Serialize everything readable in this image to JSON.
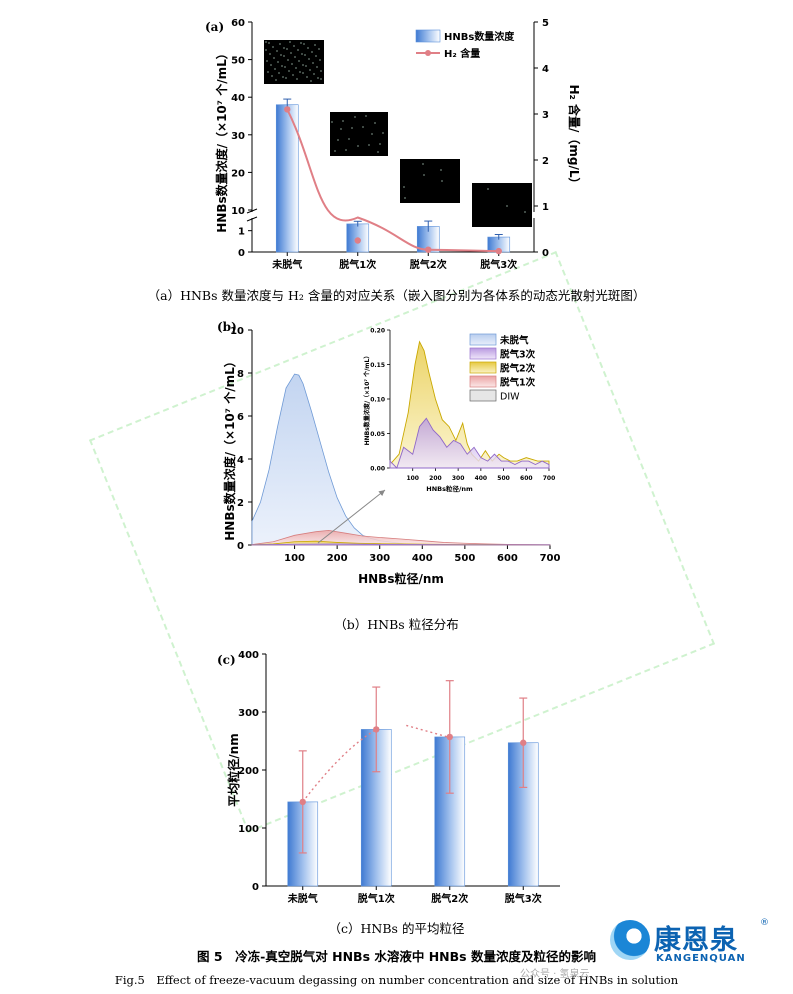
{
  "brand": {
    "name_cn": "康恩泉",
    "name_en": "KANGENQUAN",
    "reg_mark": "®",
    "wechat": "公众号 · 氢泉云"
  },
  "figure": {
    "caption_cn": "图 5　冷冻-真空脱气对 HNBs 水溶液中 HNBs 数量浓度及粒径的影响",
    "caption_en": "Fig.5　Effect of freeze-vacuum degassing on number concentration and size of HNBs in solution"
  },
  "colors": {
    "bar_blue": "#5a8fd9",
    "line_red": "#e07f86",
    "yellow": "#c9a800",
    "purple": "#a07fd0",
    "pink": "#e6a3a3"
  },
  "chart_data": [
    {
      "type": "bar",
      "panel": "(a)",
      "caption": "（a）HNBs 数量浓度与 H₂ 含量的对应关系（嵌入图分别为各体系的动态光散射光斑图）",
      "categories": [
        "未脱气",
        "脱气1次",
        "脱气2次",
        "脱气3次"
      ],
      "ylabel": "HNBs数量浓度/（×10⁷ 个/mL）",
      "y2label": "H₂ 含量/（mg/L）",
      "ylim": [
        0,
        60
      ],
      "y_break": [
        1.5,
        10
      ],
      "y_ticks": [
        0,
        1,
        10,
        20,
        30,
        40,
        50,
        60
      ],
      "y2lim": [
        0,
        5
      ],
      "y2_ticks": [
        0,
        1,
        2,
        3,
        4,
        5
      ],
      "legend": [
        "HNBs数量浓度",
        "H₂ 含量"
      ],
      "legend_position": "top-right",
      "series": [
        {
          "name": "HNBs数量浓度",
          "type": "bar",
          "values": [
            38,
            6.3,
            1.2,
            0.7
          ],
          "errors": [
            1.5,
            0.7,
            0.25,
            0.12
          ]
        },
        {
          "name": "H₂ 含量",
          "type": "line",
          "axis": "right",
          "values": [
            3.1,
            0.25,
            0.05,
            0.02
          ]
        }
      ]
    },
    {
      "type": "area",
      "panel": "(b)",
      "caption": "（b）HNBs 粒径分布",
      "xlabel": "HNBs粒径/nm",
      "ylabel": "HNBs数量浓度/（×10⁷ 个/mL）",
      "xlim": [
        0,
        700
      ],
      "ylim": [
        0,
        10
      ],
      "x_ticks": [
        100,
        200,
        300,
        400,
        500,
        600,
        700
      ],
      "y_ticks": [
        0,
        2,
        4,
        6,
        8,
        10
      ],
      "legend": [
        "未脱气",
        "脱气3次",
        "脱气2次",
        "脱气1次",
        "DIW"
      ],
      "series": [
        {
          "name": "未脱气",
          "x": [
            0,
            20,
            40,
            60,
            80,
            100,
            110,
            120,
            140,
            160,
            180,
            200,
            220,
            240,
            260,
            280,
            300,
            320,
            340,
            360
          ],
          "values": [
            1.1,
            2.0,
            3.5,
            5.5,
            7.3,
            7.95,
            7.9,
            7.5,
            6.2,
            4.8,
            3.4,
            2.2,
            1.35,
            0.8,
            0.45,
            0.3,
            0.2,
            0.15,
            0.1,
            0.05
          ]
        },
        {
          "name": "脱气1次",
          "x": [
            0,
            50,
            100,
            150,
            180,
            220,
            260,
            300,
            350,
            400,
            450,
            500,
            550,
            600,
            650,
            700
          ],
          "values": [
            0.02,
            0.15,
            0.45,
            0.62,
            0.68,
            0.55,
            0.42,
            0.35,
            0.28,
            0.2,
            0.12,
            0.08,
            0.05,
            0.03,
            0.02,
            0.01
          ]
        },
        {
          "name": "脱气2次",
          "x": [
            0,
            50,
            100,
            150,
            200,
            250,
            300,
            350,
            400,
            450,
            500,
            550,
            600,
            650,
            700
          ],
          "values": [
            0.01,
            0.05,
            0.15,
            0.18,
            0.12,
            0.08,
            0.06,
            0.05,
            0.04,
            0.03,
            0.02,
            0.02,
            0.01,
            0.01,
            0.01
          ]
        },
        {
          "name": "脱气3次",
          "x": [
            0,
            100,
            200,
            300,
            400,
            500,
            600,
            700
          ],
          "values": [
            0.01,
            0.04,
            0.05,
            0.03,
            0.02,
            0.01,
            0.01,
            0.01
          ]
        }
      ],
      "inset": {
        "xlim": [
          0,
          700
        ],
        "ylim": [
          0,
          0.2
        ],
        "x_ticks": [
          100,
          200,
          300,
          400,
          500,
          600,
          700
        ],
        "y_ticks": [
          0.0,
          0.05,
          0.1,
          0.15,
          0.2
        ],
        "xlabel": "HNBs粒径/nm",
        "ylabel": "HNBs数量浓度/（×10⁷ 个/mL）",
        "series": [
          {
            "name": "脱气2次",
            "x": [
              0,
              40,
              80,
              110,
              130,
              150,
              170,
              200,
              230,
              260,
              290,
              320,
              340,
              360,
              390,
              420,
              450,
              480,
              500,
              530,
              560,
              600,
              650,
              700
            ],
            "values": [
              0.005,
              0.02,
              0.08,
              0.15,
              0.183,
              0.17,
              0.14,
              0.1,
              0.07,
              0.06,
              0.04,
              0.065,
              0.035,
              0.02,
              0.01,
              0.025,
              0.01,
              0.02,
              0.015,
              0.01,
              0.01,
              0.015,
              0.01,
              0.01
            ]
          },
          {
            "name": "脱气3次",
            "x": [
              0,
              30,
              60,
              100,
              130,
              160,
              190,
              220,
              250,
              280,
              310,
              340,
              370,
              400,
              430,
              460,
              490,
              520,
              550,
              580,
              610,
              640,
              670,
              700
            ],
            "values": [
              0.01,
              0.0,
              0.03,
              0.02,
              0.06,
              0.072,
              0.055,
              0.045,
              0.03,
              0.04,
              0.035,
              0.02,
              0.03,
              0.015,
              0.01,
              0.02,
              0.01,
              0.01,
              0.005,
              0.01,
              0.01,
              0.005,
              0.01,
              0.005
            ]
          }
        ]
      }
    },
    {
      "type": "bar",
      "panel": "(c)",
      "caption": "（c）HNBs 的平均粒径",
      "categories": [
        "未脱气",
        "脱气1次",
        "脱气2次",
        "脱气3次"
      ],
      "ylabel": "平均粒径/nm",
      "ylim": [
        0,
        400
      ],
      "y_ticks": [
        0,
        100,
        200,
        300,
        400
      ],
      "series": [
        {
          "name": "平均粒径",
          "values": [
            145,
            270,
            257,
            247
          ],
          "errors": [
            88,
            73,
            97,
            77
          ]
        }
      ]
    }
  ]
}
